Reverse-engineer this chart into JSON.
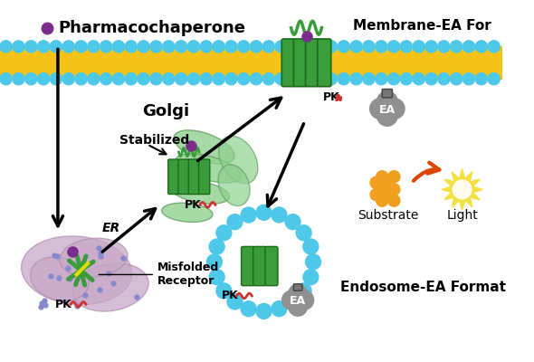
{
  "bg_color": "#ffffff",
  "labels": {
    "pharmacochaperone": "Pharmacochaperone",
    "membrane_ea": "Membrane-EA For",
    "golgi": "Golgi",
    "stabilized": "Stabilized",
    "er": "ER",
    "misfolded": "Misfolded\nReceptor",
    "substrate": "Substrate",
    "light": "Light",
    "endosome_ea": "Endosome-EA Format",
    "pk": "PK",
    "ea": "EA"
  },
  "pharma_color": "#7B2D8B",
  "receptor_green": "#3a9c3a",
  "receptor_dark": "#1a6c1a",
  "er_color": "#c8a8c8",
  "golgi_color": "#90d090",
  "golgi_edge": "#60a060",
  "bead_color": "#4dc8e8",
  "linker_color": "#f0a020",
  "pk_color": "#cc3333",
  "ea_color": "#909090",
  "substrate_color": "#f0a020",
  "light_color": "#f5e040",
  "membrane_fill": "#f5c218",
  "arrow_orange": "#dd4400"
}
